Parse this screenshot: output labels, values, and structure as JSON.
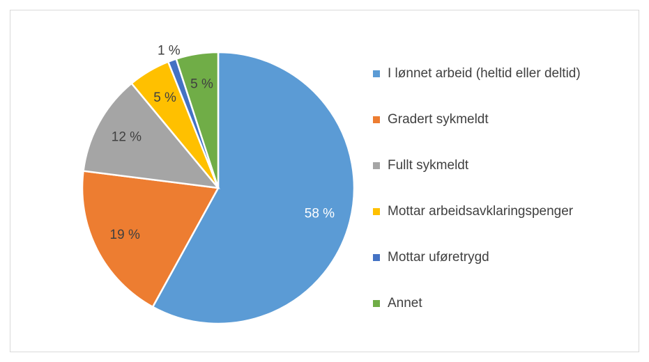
{
  "chart_data": {
    "type": "pie",
    "categories": [
      "I lønnet arbeid (heltid eller deltid)",
      "Gradert sykmeldt",
      "Fullt sykmeldt",
      "Mottar arbeidsavklaringspenger",
      "Mottar uføretrygd",
      "Annet"
    ],
    "values": [
      58,
      19,
      12,
      5,
      1,
      5
    ],
    "value_labels": [
      "58 %",
      "19 %",
      "12 %",
      "5 %",
      "1 %",
      "5 %"
    ],
    "colors": [
      "#5b9bd5",
      "#ed7d31",
      "#a5a5a5",
      "#ffc000",
      "#4472c4",
      "#70ad47"
    ],
    "label_colors": [
      "#ffffff",
      "#404040",
      "#404040",
      "#404040",
      "#404040",
      "#404040"
    ],
    "legend": "right"
  }
}
